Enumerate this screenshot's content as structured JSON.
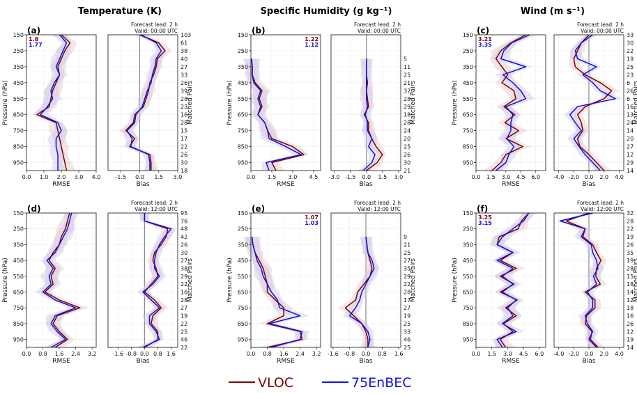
{
  "columns": [
    {
      "title": "Temperature (K)"
    },
    {
      "title": "Specific Humidity (g kg⁻¹)"
    },
    {
      "title": "Wind (m s⁻¹)"
    }
  ],
  "legend": {
    "series": [
      {
        "name": "VLOC",
        "color": "#7a0000"
      },
      {
        "name": "75EnBEC",
        "color": "#1010e0"
      }
    ]
  },
  "labels": {
    "ylabel": "Pressure (hPa)",
    "rmse": "RMSE",
    "bias": "Bias",
    "pairs": "Matched Pairs"
  },
  "chart_data": [
    {
      "type": "line",
      "panel": "(a)",
      "lead": "Forecast lead: 2 h",
      "valid": "Valid: 00:00 UTC",
      "levels": [
        150,
        200,
        250,
        300,
        350,
        400,
        450,
        500,
        550,
        600,
        650,
        700,
        750,
        800,
        850,
        900,
        950,
        1000
      ],
      "ylim": [
        1000,
        150
      ],
      "rmse_ticks": [
        "0.0",
        "1.0",
        "2.0",
        "3.0",
        "4.0"
      ],
      "rmse_xlim": [
        0,
        4
      ],
      "bias_ticks": [
        "-1.5",
        "0.0",
        "1.5",
        "3.0"
      ],
      "bias_xlim": [
        -2.5,
        3.0
      ],
      "pairs": [
        "103",
        "61",
        "38",
        "40",
        "27",
        "33",
        "26",
        "39",
        "28",
        "23",
        "16",
        "28",
        "15",
        "17",
        "22",
        "26",
        "30",
        "18"
      ],
      "summary": [
        "1.8",
        "1.77"
      ],
      "series": [
        {
          "name": "VLOC",
          "rmse": [
            2.0,
            2.5,
            2.2,
            2.0,
            1.8,
            1.9,
            1.7,
            1.5,
            1.4,
            1.3,
            0.6,
            1.7,
            1.8,
            1.9,
            2.0,
            2.1,
            2.2,
            2.3
          ],
          "bias": [
            0.0,
            1.5,
            2.0,
            1.4,
            1.3,
            1.1,
            0.8,
            0.7,
            0.5,
            0.3,
            -0.4,
            -0.5,
            -1.1,
            -0.4,
            -0.8,
            0.8,
            0.9,
            0.9
          ]
        },
        {
          "name": "75EnBEC",
          "rmse": [
            1.9,
            2.3,
            2.1,
            1.9,
            1.7,
            1.9,
            1.6,
            1.4,
            1.5,
            1.2,
            0.8,
            1.8,
            2.0,
            1.7,
            1.7,
            1.8,
            1.8,
            1.8
          ],
          "bias": [
            0.1,
            1.3,
            1.7,
            1.3,
            1.2,
            1.0,
            0.9,
            0.6,
            0.4,
            0.2,
            -0.3,
            -0.4,
            -1.0,
            -0.6,
            -0.7,
            0.7,
            0.8,
            0.8
          ]
        }
      ]
    },
    {
      "type": "line",
      "panel": "(b)",
      "lead": "Forecast lead: 2 h",
      "valid": "Valid: 00:00 UTC",
      "levels": [
        150,
        200,
        250,
        300,
        350,
        400,
        450,
        500,
        550,
        600,
        650,
        700,
        750,
        800,
        850,
        900,
        950,
        1000
      ],
      "ylim": [
        1000,
        150
      ],
      "rmse_ticks": [
        "0.0",
        "1.5",
        "3.0",
        "4.5"
      ],
      "rmse_xlim": [
        0,
        5.0
      ],
      "bias_ticks": [
        "-3.0",
        "-1.5",
        "0.0",
        "1.5",
        "3.0"
      ],
      "bias_xlim": [
        -3.3,
        3.2
      ],
      "pairs": [
        "",
        "",
        "",
        "5",
        "11",
        "25",
        "21",
        "37",
        "28",
        "29",
        "18",
        "28",
        "24",
        "20",
        "25",
        "26",
        "30",
        "21"
      ],
      "summary": [
        "1.22",
        "1.12"
      ],
      "series": [
        {
          "name": "VLOC",
          "rmse": [
            null,
            null,
            null,
            0.05,
            0.1,
            0.1,
            0.3,
            0.8,
            0.6,
            0.8,
            0.5,
            1.0,
            1.2,
            1.5,
            3.0,
            3.8,
            1.5,
            1.8
          ],
          "bias": [
            null,
            null,
            null,
            0.0,
            0.0,
            0.0,
            0.1,
            0.0,
            0.1,
            0.2,
            -0.2,
            0.2,
            0.2,
            0.5,
            0.9,
            1.5,
            1.0,
            0.0
          ]
        },
        {
          "name": "75EnBEC",
          "rmse": [
            null,
            null,
            null,
            0.05,
            0.1,
            0.1,
            0.2,
            0.7,
            0.5,
            0.7,
            0.5,
            1.0,
            1.2,
            1.3,
            2.5,
            3.6,
            1.1,
            1.3
          ],
          "bias": [
            null,
            null,
            null,
            0.0,
            0.0,
            0.0,
            0.0,
            0.0,
            0.0,
            0.1,
            -0.1,
            0.1,
            0.1,
            0.5,
            0.2,
            0.8,
            0.5,
            -0.3
          ]
        }
      ]
    },
    {
      "type": "line",
      "panel": "(c)",
      "lead": "Forecast lead: 2 h",
      "valid": "Valid: 00:00 UTC",
      "levels": [
        150,
        200,
        250,
        300,
        350,
        400,
        450,
        500,
        550,
        600,
        650,
        700,
        750,
        800,
        850,
        900,
        950,
        1000
      ],
      "ylim": [
        1000,
        150
      ],
      "rmse_ticks": [
        "0.0",
        "1.5",
        "3.0",
        "4.5",
        "6.0"
      ],
      "rmse_xlim": [
        0,
        7.0
      ],
      "bias_ticks": [
        "-4.0",
        "-2.0",
        "0.0",
        "2.0",
        "4.0"
      ],
      "bias_xlim": [
        -4.6,
        4.6
      ],
      "pairs": [
        "33",
        "30",
        "22",
        "19",
        "25",
        "23",
        "6",
        "26",
        "6",
        "16",
        "13",
        "24",
        "14",
        "20",
        "27",
        "12",
        "29",
        "14"
      ],
      "summary": [
        "3.21",
        "3.35"
      ],
      "series": [
        {
          "name": "VLOC",
          "rmse": [
            5.0,
            3.5,
            2.5,
            2.0,
            2.6,
            3.2,
            2.6,
            3.8,
            4.0,
            2.8,
            3.9,
            2.9,
            4.3,
            3.0,
            4.7,
            3.0,
            2.5,
            1.6
          ],
          "bias": [
            0.0,
            -1.0,
            -1.5,
            -2.0,
            -1.8,
            -0.5,
            1.5,
            3.0,
            2.0,
            -0.5,
            -1.5,
            -1.0,
            -0.8,
            -1.5,
            -1.2,
            0.0,
            1.0,
            2.0
          ]
        },
        {
          "name": "75EnBEC",
          "rmse": [
            5.4,
            3.6,
            2.8,
            2.5,
            5.0,
            2.7,
            3.7,
            4.5,
            5.0,
            3.0,
            3.7,
            3.5,
            3.5,
            3.1,
            3.8,
            3.3,
            3.0,
            2.0
          ],
          "bias": [
            0.5,
            -1.0,
            -1.8,
            -1.5,
            1.0,
            -0.8,
            0.5,
            1.5,
            3.5,
            -1.5,
            -2.5,
            -1.8,
            -1.0,
            -2.0,
            -1.3,
            -0.5,
            0.5,
            1.5
          ]
        }
      ]
    },
    {
      "type": "line",
      "panel": "(d)",
      "lead": "Forecast lead: 2 h",
      "valid": "Valid: 12:00 UTC",
      "levels": [
        150,
        200,
        250,
        300,
        350,
        400,
        450,
        500,
        550,
        600,
        650,
        700,
        750,
        800,
        850,
        900,
        950,
        1000
      ],
      "ylim": [
        1000,
        150
      ],
      "rmse_ticks": [
        "0.0",
        "0.8",
        "1.6",
        "2.4",
        "3.2"
      ],
      "rmse_xlim": [
        0,
        3.4
      ],
      "bias_ticks": [
        "-1.6",
        "-0.8",
        "0.0",
        "0.8",
        "1.6"
      ],
      "bias_xlim": [
        -2.2,
        2.0
      ],
      "pairs": [
        "95",
        "76",
        "48",
        "42",
        "26",
        "30",
        "27",
        "38",
        "29",
        "22",
        "16",
        "28",
        "27",
        "19",
        "22",
        "25",
        "46",
        "22"
      ],
      "summary": [],
      "series": [
        {
          "name": "VLOC",
          "rmse": [
            2.1,
            2.0,
            1.9,
            1.7,
            1.6,
            1.3,
            1.1,
            1.4,
            1.2,
            1.3,
            0.9,
            1.6,
            2.6,
            1.5,
            1.3,
            1.6,
            2.0,
            1.4
          ],
          "bias": [
            0.0,
            0.0,
            1.4,
            1.3,
            1.0,
            0.6,
            0.5,
            0.7,
            0.8,
            0.4,
            0.0,
            0.6,
            1.0,
            0.5,
            0.4,
            0.8,
            0.8,
            0.0
          ]
        },
        {
          "name": "75EnBEC",
          "rmse": [
            2.2,
            2.1,
            2.0,
            1.8,
            1.6,
            1.4,
            1.0,
            1.3,
            1.1,
            1.2,
            0.8,
            1.4,
            2.4,
            1.4,
            1.2,
            1.5,
            1.9,
            1.2
          ],
          "bias": [
            0.0,
            0.0,
            1.6,
            1.2,
            0.9,
            0.7,
            0.6,
            0.6,
            0.9,
            0.5,
            -0.1,
            0.4,
            0.9,
            0.3,
            0.3,
            0.7,
            0.9,
            -0.1
          ]
        }
      ]
    },
    {
      "type": "line",
      "panel": "(e)",
      "lead": "Forecast lead: 2 h",
      "valid": "Valid: 12:00 UTC",
      "levels": [
        150,
        200,
        250,
        300,
        350,
        400,
        450,
        500,
        550,
        600,
        650,
        700,
        750,
        800,
        850,
        900,
        950,
        1000
      ],
      "ylim": [
        1000,
        150
      ],
      "rmse_ticks": [
        "0.0",
        "0.8",
        "1.6",
        "2.4",
        "3.2"
      ],
      "rmse_xlim": [
        0,
        3.4
      ],
      "bias_ticks": [
        "-1.6",
        "-0.8",
        "0.0",
        "0.8",
        "1.6"
      ],
      "bias_xlim": [
        -1.7,
        1.7
      ],
      "pairs": [
        "",
        "",
        "",
        "9",
        "21",
        "25",
        "27",
        "35",
        "29",
        "22",
        "28",
        "17",
        "27",
        "19",
        "25",
        "33",
        "46",
        "25"
      ],
      "summary": [
        "1.07",
        "1.03"
      ],
      "series": [
        {
          "name": "VLOC",
          "rmse": [
            null,
            null,
            null,
            0.05,
            0.1,
            0.2,
            0.4,
            0.6,
            0.7,
            0.8,
            0.8,
            1.2,
            1.6,
            1.6,
            0.8,
            2.4,
            2.5,
            0.8
          ],
          "bias": [
            null,
            null,
            null,
            0.0,
            0.05,
            0.1,
            0.2,
            0.3,
            0.2,
            -0.1,
            -0.4,
            -0.5,
            -1.0,
            -0.6,
            -0.2,
            0.0,
            0.1,
            0.1
          ]
        },
        {
          "name": "75EnBEC",
          "rmse": [
            null,
            null,
            null,
            0.05,
            0.1,
            0.2,
            0.3,
            0.5,
            0.6,
            0.8,
            1.0,
            1.3,
            1.4,
            2.4,
            0.9,
            2.5,
            2.4,
            1.0
          ],
          "bias": [
            null,
            null,
            null,
            0.0,
            0.05,
            0.1,
            0.3,
            0.4,
            0.2,
            0.0,
            -0.2,
            -0.3,
            -0.5,
            -0.8,
            -0.2,
            0.1,
            0.2,
            0.1
          ]
        }
      ]
    },
    {
      "type": "line",
      "panel": "(f)",
      "lead": "Forecast lead: 2 h",
      "valid": "Valid: 12:00 UTC",
      "levels": [
        150,
        200,
        250,
        300,
        350,
        400,
        450,
        500,
        550,
        600,
        650,
        700,
        750,
        800,
        850,
        900,
        950,
        1000
      ],
      "ylim": [
        1000,
        150
      ],
      "rmse_ticks": [
        "0.0",
        "1.5",
        "3.0",
        "4.5",
        "6.0"
      ],
      "rmse_xlim": [
        0,
        6.6
      ],
      "bias_ticks": [
        "-4.0",
        "-2.0",
        "0.0",
        "2.0",
        "4.0"
      ],
      "bias_xlim": [
        -4.6,
        4.6
      ],
      "pairs": [
        "32",
        "28",
        "22",
        "19",
        "26",
        "35",
        "19",
        "28",
        "15",
        "18",
        "14",
        "12",
        "18",
        "16",
        "26",
        "12",
        "19",
        "14"
      ],
      "summary": [
        "3.25",
        "3.15"
      ],
      "series": [
        {
          "name": "VLOC",
          "rmse": [
            5.0,
            4.3,
            4.0,
            2.2,
            2.0,
            3.5,
            2.3,
            3.8,
            2.3,
            3.6,
            2.3,
            3.9,
            2.8,
            3.8,
            2.6,
            3.5,
            2.3,
            2.8
          ],
          "bias": [
            0.0,
            -3.0,
            -0.5,
            -0.8,
            0.5,
            1.0,
            1.6,
            1.0,
            0.9,
            1.5,
            -0.5,
            0.8,
            0.8,
            -0.3,
            -0.5,
            0.4,
            0.2,
            1.2
          ]
        },
        {
          "name": "75EnBEC",
          "rmse": [
            5.0,
            4.5,
            3.5,
            2.5,
            2.0,
            3.5,
            2.0,
            3.5,
            2.5,
            3.5,
            2.5,
            3.8,
            3.0,
            3.5,
            2.5,
            3.8,
            2.0,
            2.5
          ],
          "bias": [
            0.5,
            -3.8,
            -0.5,
            -1.0,
            0.3,
            0.5,
            1.0,
            1.2,
            0.6,
            1.0,
            -0.2,
            0.5,
            0.5,
            -0.5,
            -0.2,
            0.5,
            0.0,
            1.0
          ]
        }
      ]
    }
  ]
}
